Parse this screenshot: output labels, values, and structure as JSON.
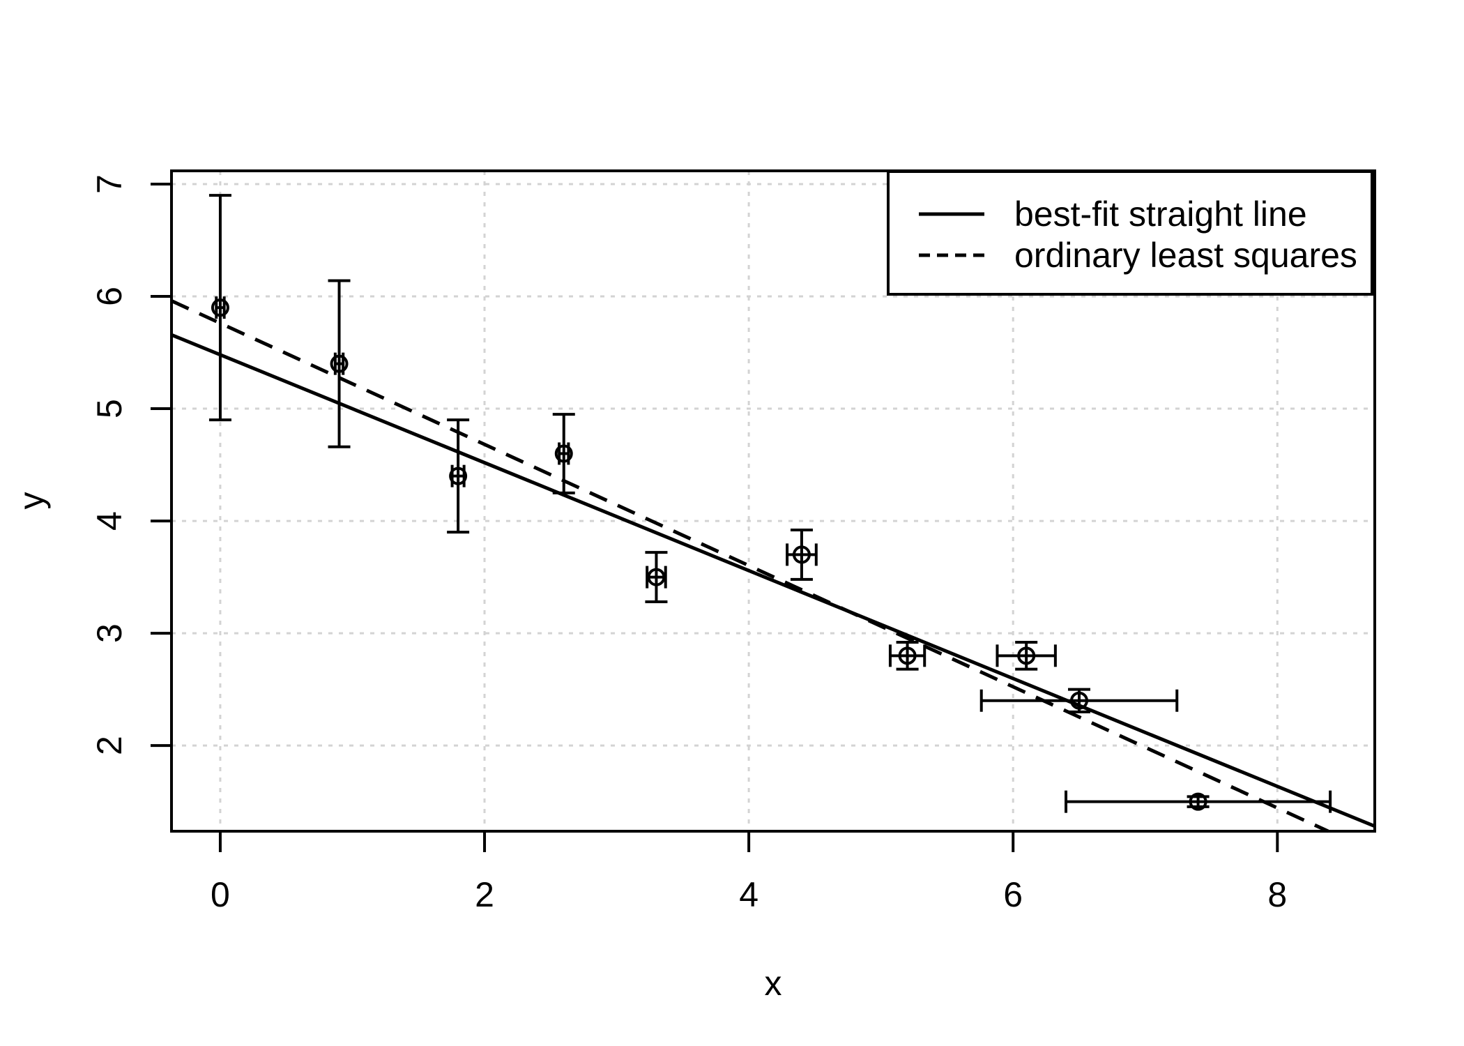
{
  "chart_data": {
    "type": "scatter",
    "title": "",
    "xlabel": "x",
    "ylabel": "y",
    "x_ticks": [
      0,
      2,
      4,
      6,
      8
    ],
    "y_ticks": [
      2,
      3,
      4,
      5,
      6,
      7
    ],
    "xlim": [
      -0.369,
      8.737
    ],
    "ylim": [
      1.237,
      7.118
    ],
    "grid": true,
    "grid_style": "dotted-lightgray",
    "marker": "open-circle-with-error-bars",
    "points": [
      {
        "x": 0.0,
        "y": 5.9,
        "x_err": 0.03,
        "y_err": 1.0
      },
      {
        "x": 0.9,
        "y": 5.4,
        "x_err": 0.03,
        "y_err": 0.74
      },
      {
        "x": 1.8,
        "y": 4.4,
        "x_err": 0.045,
        "y_err": 0.5
      },
      {
        "x": 2.6,
        "y": 4.6,
        "x_err": 0.035,
        "y_err": 0.35
      },
      {
        "x": 3.3,
        "y": 3.5,
        "x_err": 0.07,
        "y_err": 0.22
      },
      {
        "x": 4.4,
        "y": 3.7,
        "x_err": 0.11,
        "y_err": 0.22
      },
      {
        "x": 5.2,
        "y": 2.8,
        "x_err": 0.13,
        "y_err": 0.12
      },
      {
        "x": 6.1,
        "y": 2.8,
        "x_err": 0.22,
        "y_err": 0.12
      },
      {
        "x": 6.5,
        "y": 2.4,
        "x_err": 0.74,
        "y_err": 0.1
      },
      {
        "x": 7.4,
        "y": 1.5,
        "x_err": 1.0,
        "y_err": 0.045
      }
    ],
    "lines": [
      {
        "name": "best-fit straight line",
        "style": "solid",
        "slope": -0.4805,
        "intercept": 5.48
      },
      {
        "name": "ordinary least squares",
        "style": "dashed",
        "slope": -0.5396,
        "intercept": 5.7612
      }
    ],
    "legend_position": "topright",
    "legend": [
      {
        "label": "best-fit straight line",
        "line_style": "solid"
      },
      {
        "label": "ordinary least squares",
        "line_style": "dashed"
      }
    ]
  },
  "colors": {
    "foreground": "#000000",
    "grid": "#d3d3d3",
    "background": "#ffffff"
  }
}
